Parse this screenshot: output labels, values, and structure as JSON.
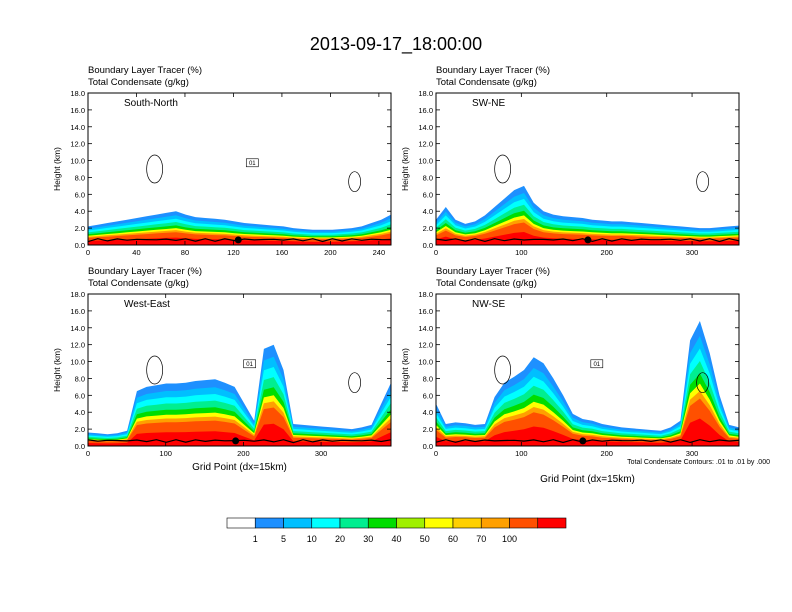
{
  "chart_data": {
    "type": "heatmap",
    "title": "2013-09-17_18:00:00",
    "field_labels": [
      "Boundary Layer Tracer   (%)",
      "Total Condensate   (g/kg)"
    ],
    "contour_note": "Total Condensate Contours: .01 to .01 by .000",
    "colorbar": {
      "levels": [
        "1",
        "5",
        "10",
        "20",
        "30",
        "40",
        "50",
        "60",
        "70",
        "100"
      ],
      "colors": [
        "#ffffff",
        "#1e90ff",
        "#00bfff",
        "#00ffff",
        "#00ee90",
        "#00dd00",
        "#a0f000",
        "#ffff00",
        "#ffd000",
        "#ffa000",
        "#ff5000",
        "#ff0000"
      ]
    },
    "panels": [
      {
        "id": "south-north",
        "label": "South-North",
        "ylabel": "Height (km)",
        "xlabel": "",
        "xlim": [
          0,
          250
        ],
        "ylim": [
          0,
          18
        ],
        "xticks": [
          "0",
          "40",
          "80",
          "120",
          "160",
          "200",
          "240"
        ],
        "xtick_values": [
          0,
          40,
          80,
          120,
          160,
          200,
          240
        ],
        "yticks": [
          "0.0",
          "2.0",
          "4.0",
          "6.0",
          "8.0",
          "10.0",
          "12.0",
          "14.0",
          "16.0",
          "18.0"
        ],
        "contour_label": "01",
        "center_x": 124,
        "tracer_top_km": [
          2.2,
          2.4,
          2.6,
          2.8,
          3.0,
          3.2,
          3.4,
          3.6,
          3.8,
          4.0,
          3.6,
          3.3,
          3.2,
          3.1,
          3.0,
          2.8,
          2.6,
          2.5,
          2.4,
          2.3,
          2.2,
          2.0,
          1.9,
          1.8,
          1.8,
          1.8,
          1.9,
          2.0,
          2.2,
          2.6,
          3.0,
          3.6
        ]
      },
      {
        "id": "sw-ne",
        "label": "SW-NE",
        "ylabel": "Height (km)",
        "xlabel": "",
        "xlim": [
          0,
          355
        ],
        "ylim": [
          0,
          18
        ],
        "xticks": [
          "0",
          "100",
          "200",
          "300"
        ],
        "xtick_values": [
          0,
          100,
          200,
          300
        ],
        "yticks": [
          "0.0",
          "2.0",
          "4.0",
          "6.0",
          "8.0",
          "10.0",
          "12.0",
          "14.0",
          "16.0",
          "18.0"
        ],
        "contour_label": "",
        "center_x": 178,
        "tracer_top_km": [
          3.0,
          4.5,
          3.0,
          2.5,
          2.8,
          3.5,
          4.5,
          5.5,
          6.5,
          7.0,
          5.0,
          4.0,
          3.6,
          3.4,
          3.3,
          3.2,
          3.0,
          2.9,
          2.8,
          2.8,
          2.7,
          2.6,
          2.5,
          2.4,
          2.3,
          2.2,
          2.1,
          2.0,
          2.0,
          2.1,
          2.2,
          2.3
        ]
      },
      {
        "id": "west-east",
        "label": "West-East",
        "ylabel": "Height (km)",
        "xlabel": "Grid Point  (dx=15km)",
        "xlim": [
          0,
          390
        ],
        "ylim": [
          0,
          18
        ],
        "xticks": [
          "0",
          "100",
          "200",
          "300"
        ],
        "xtick_values": [
          0,
          100,
          200,
          300
        ],
        "yticks": [
          "0.0",
          "2.0",
          "4.0",
          "6.0",
          "8.0",
          "10.0",
          "12.0",
          "14.0",
          "16.0",
          "18.0"
        ],
        "contour_label": "01",
        "center_x": 190,
        "tracer_top_km": [
          1.6,
          1.5,
          1.4,
          1.5,
          1.8,
          6.5,
          7.0,
          7.2,
          7.4,
          7.4,
          7.5,
          7.7,
          7.8,
          7.9,
          7.5,
          7.0,
          5.0,
          3.0,
          11.5,
          12.0,
          9.0,
          2.6,
          2.5,
          2.4,
          2.3,
          2.2,
          2.1,
          2.0,
          2.2,
          2.5,
          5.0,
          7.5
        ]
      },
      {
        "id": "nw-se",
        "label": "NW-SE",
        "ylabel": "Height (km)",
        "xlabel": "Grid Point  (dx=15km)",
        "xlim": [
          0,
          355
        ],
        "ylim": [
          0,
          18
        ],
        "xticks": [
          "0",
          "100",
          "200",
          "300"
        ],
        "xtick_values": [
          0,
          100,
          200,
          300
        ],
        "yticks": [
          "0.0",
          "2.0",
          "4.0",
          "6.0",
          "8.0",
          "10.0",
          "12.0",
          "14.0",
          "16.0",
          "18.0"
        ],
        "contour_label": "01",
        "center_x": 172,
        "tracer_top_km": [
          5.0,
          2.6,
          2.8,
          2.7,
          2.5,
          2.6,
          5.8,
          7.5,
          8.2,
          9.0,
          10.5,
          9.8,
          8.0,
          6.0,
          3.8,
          3.2,
          3.0,
          2.6,
          2.4,
          2.2,
          2.1,
          2.0,
          1.9,
          1.8,
          2.2,
          3.0,
          12.5,
          14.8,
          11.0,
          6.0,
          2.5,
          2.2
        ]
      }
    ]
  }
}
